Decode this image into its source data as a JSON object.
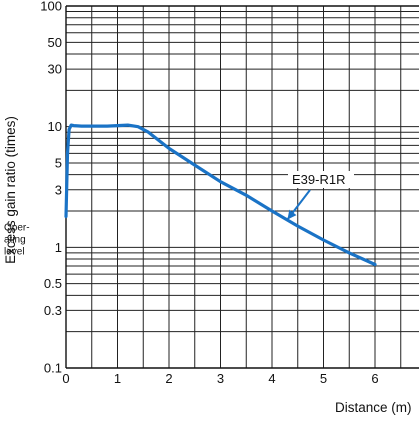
{
  "chart_data": {
    "type": "line",
    "ylabel": "Excess gain ratio (times)",
    "xlabel": "Distance (m)",
    "yscale": "log",
    "ylim": [
      0.1,
      100
    ],
    "xlim": [
      0,
      7
    ],
    "x_ticks": [
      0,
      1,
      2,
      3,
      4,
      5,
      6
    ],
    "x_tick_labels": [
      "0",
      "1",
      "2",
      "3",
      "4",
      "5",
      "6"
    ],
    "y_ticks": [
      0.1,
      0.3,
      0.5,
      1,
      3,
      5,
      10,
      30,
      50,
      100
    ],
    "y_tick_labels": [
      "0.1",
      "0.3",
      "0.5",
      "1",
      "3",
      "5",
      "10",
      "30",
      "50",
      "100"
    ],
    "operating_level": {
      "value": 1,
      "line1": "Oper-",
      "line2": "ating",
      "line3": "level"
    },
    "grid": true,
    "series": [
      {
        "name": "E39-R1R",
        "color": "#1a73c6",
        "x": [
          0,
          0.03,
          0.06,
          0.1,
          0.15,
          0.3,
          0.5,
          0.8,
          1.0,
          1.2,
          1.4,
          1.6,
          2.0,
          2.5,
          3.0,
          3.5,
          4.0,
          4.5,
          5.0,
          5.5,
          6.0
        ],
        "y": [
          1.8,
          6.0,
          9.5,
          10.3,
          10.2,
          10.1,
          10.1,
          10.1,
          10.2,
          10.3,
          10.0,
          9.0,
          6.6,
          4.8,
          3.5,
          2.7,
          2.0,
          1.5,
          1.15,
          0.9,
          0.72
        ]
      }
    ],
    "annotation": {
      "text": "E39-R1R",
      "point_x": 4.3,
      "point_y": 1.8
    }
  }
}
